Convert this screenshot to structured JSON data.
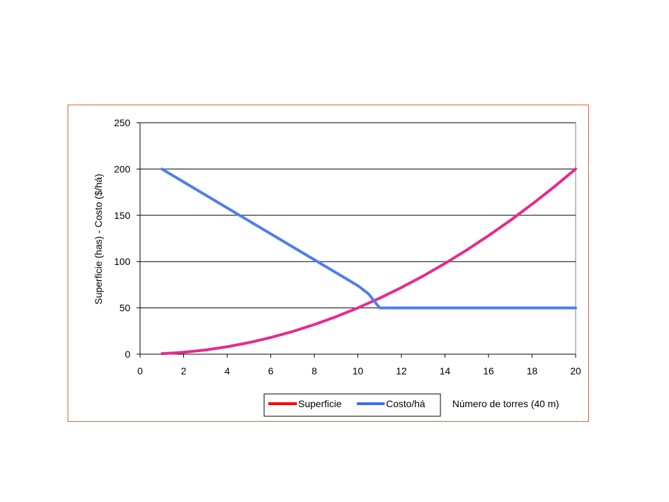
{
  "chart_data": {
    "type": "line",
    "title": "",
    "xlabel": "Número de torres (40 m)",
    "ylabel": "Superficie (has) - Costo ($/há)",
    "xlim": [
      0,
      20
    ],
    "ylim": [
      0,
      250
    ],
    "xticks": [
      "0",
      "2",
      "4",
      "6",
      "8",
      "10",
      "12",
      "14",
      "16",
      "18",
      "20"
    ],
    "yticks": [
      "0",
      "50",
      "100",
      "150",
      "200",
      "250"
    ],
    "grid": "horizontal",
    "legend_position": "bottom",
    "series": [
      {
        "name": "Superficie",
        "color": "#e8298a",
        "legend_color": "#ff0000",
        "x": [
          1,
          2,
          3,
          4,
          5,
          6,
          7,
          8,
          9,
          10,
          11,
          12,
          13,
          14,
          15,
          16,
          17,
          18,
          19,
          20
        ],
        "y": [
          0.5,
          2,
          4.5,
          8,
          12.5,
          18,
          24.5,
          32,
          40.5,
          50,
          60.5,
          72,
          84.5,
          98,
          112.5,
          128,
          144.5,
          162,
          180.5,
          200
        ]
      },
      {
        "name": "Costo/há",
        "color": "#4d7ef0",
        "legend_color": "#3a6ef0",
        "x": [
          1,
          2,
          3,
          4,
          5,
          6,
          7,
          8,
          9,
          10,
          10.5,
          11,
          11.5,
          12,
          13,
          14,
          15,
          16,
          17,
          18,
          19,
          20
        ],
        "y": [
          200,
          186,
          172,
          158,
          144,
          130,
          116,
          102,
          88,
          74,
          65,
          50,
          50,
          50,
          50,
          50,
          50,
          50,
          50,
          50,
          50,
          50
        ]
      }
    ]
  }
}
